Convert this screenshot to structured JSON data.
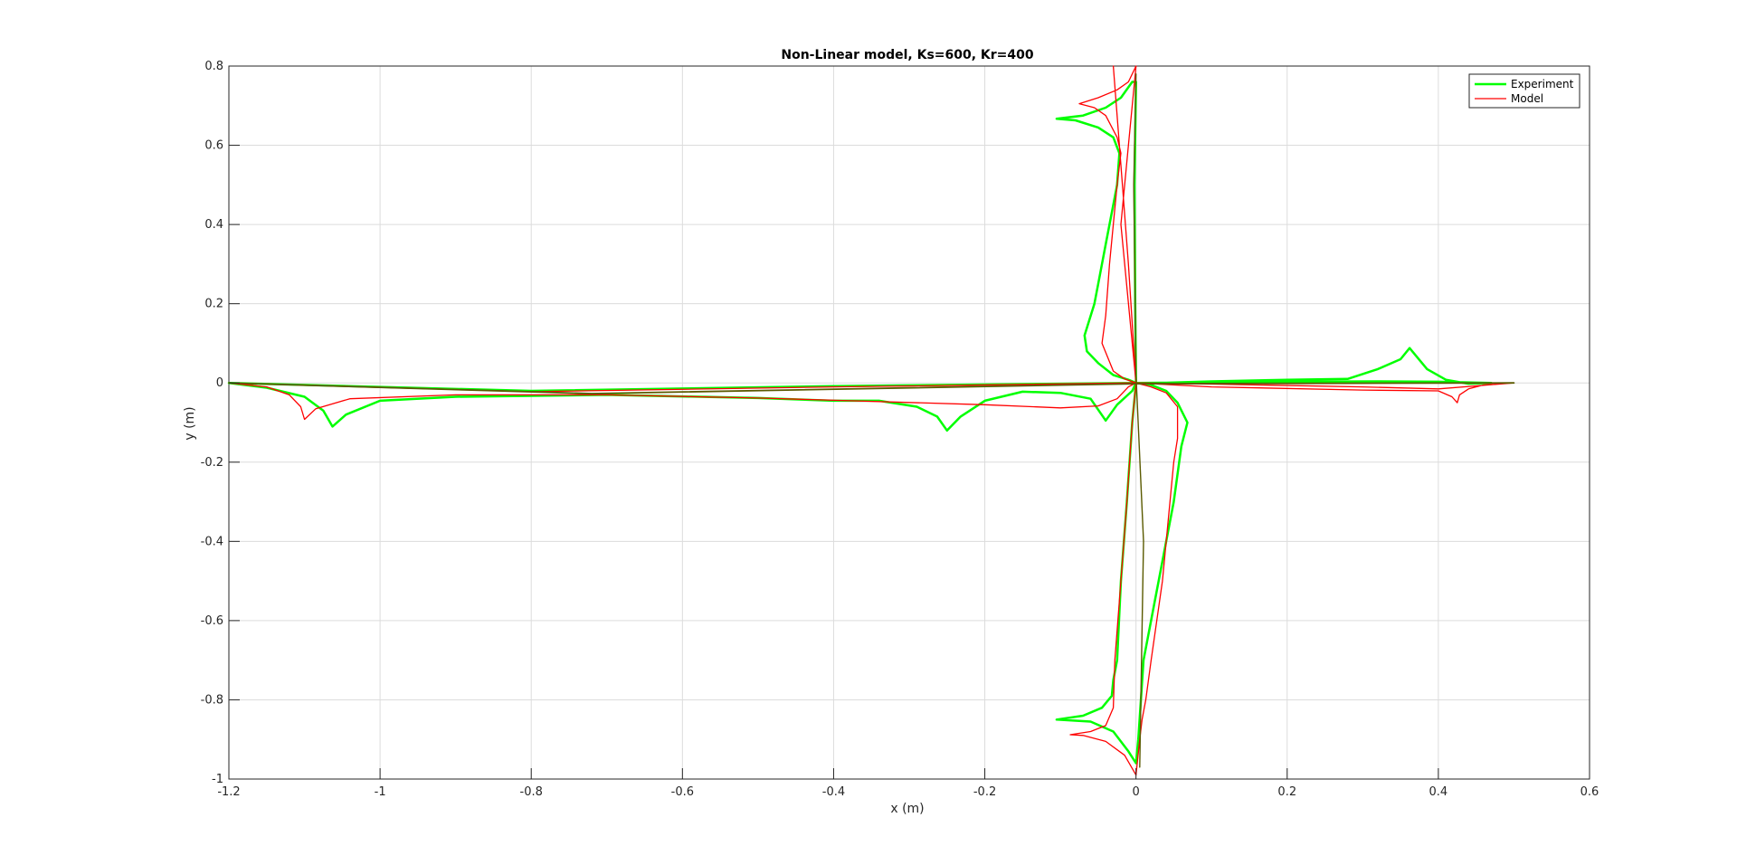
{
  "chart_data": {
    "type": "line",
    "title": "Non-Linear model, Ks=600, Kr=400",
    "xlabel": "x (m)",
    "ylabel": "y (m)",
    "xlim": [
      -1.2,
      0.6
    ],
    "ylim": [
      -1,
      0.8
    ],
    "xticks": [
      -1.2,
      -1,
      -0.8,
      -0.6,
      -0.4,
      -0.2,
      0,
      0.2,
      0.4,
      0.6
    ],
    "yticks": [
      -1,
      -0.8,
      -0.6,
      -0.4,
      -0.2,
      0,
      0.2,
      0.4,
      0.6,
      0.8
    ],
    "xtick_labels": [
      "-1.2",
      "-1",
      "-0.8",
      "-0.6",
      "-0.4",
      "-0.2",
      "0",
      "0.2",
      "0.4",
      "0.6"
    ],
    "ytick_labels": [
      "-1",
      "-0.8",
      "-0.6",
      "-0.4",
      "-0.2",
      "0",
      "0.2",
      "0.4",
      "0.6",
      "0.8"
    ],
    "grid": true,
    "legend_position": "top-right",
    "series": [
      {
        "name": "Experiment",
        "color": "#00ff00",
        "width": 2.5,
        "points": [
          [
            0,
            0
          ],
          [
            0.06,
            0.001
          ],
          [
            0.2,
            0.003
          ],
          [
            0.32,
            0.004
          ],
          [
            0.4,
            0.003
          ],
          [
            0.47,
            0.0
          ],
          [
            0.44,
            -0.002
          ],
          [
            0.41,
            0.008
          ],
          [
            0.385,
            0.035
          ],
          [
            0.362,
            0.088
          ],
          [
            0.35,
            0.06
          ],
          [
            0.32,
            0.035
          ],
          [
            0.28,
            0.01
          ],
          [
            0.2,
            0.008
          ],
          [
            0.1,
            0.004
          ],
          [
            0.03,
            0.0
          ],
          [
            0.0,
            0.0
          ],
          [
            -0.4,
            -0.008
          ],
          [
            -0.8,
            -0.02
          ],
          [
            -1.2,
            0.0
          ],
          [
            -1.15,
            -0.012
          ],
          [
            -1.1,
            -0.035
          ],
          [
            -1.075,
            -0.07
          ],
          [
            -1.063,
            -0.11
          ],
          [
            -1.045,
            -0.08
          ],
          [
            -1.0,
            -0.045
          ],
          [
            -0.9,
            -0.035
          ],
          [
            -0.7,
            -0.03
          ],
          [
            -0.5,
            -0.038
          ],
          [
            -0.4,
            -0.045
          ],
          [
            -0.34,
            -0.045
          ],
          [
            -0.29,
            -0.06
          ],
          [
            -0.263,
            -0.085
          ],
          [
            -0.25,
            -0.12
          ],
          [
            -0.232,
            -0.085
          ],
          [
            -0.2,
            -0.045
          ],
          [
            -0.15,
            -0.022
          ],
          [
            -0.1,
            -0.025
          ],
          [
            -0.06,
            -0.04
          ],
          [
            -0.04,
            -0.095
          ],
          [
            -0.025,
            -0.055
          ],
          [
            -0.005,
            -0.02
          ],
          [
            0.0,
            0.0
          ],
          [
            0.02,
            -0.005
          ],
          [
            0.04,
            -0.02
          ],
          [
            0.055,
            -0.05
          ],
          [
            0.068,
            -0.1
          ],
          [
            0.06,
            -0.16
          ],
          [
            0.05,
            -0.3
          ],
          [
            0.03,
            -0.5
          ],
          [
            0.01,
            -0.7
          ],
          [
            0.003,
            -0.9
          ],
          [
            0.0,
            -0.96
          ],
          [
            -0.01,
            -0.93
          ],
          [
            -0.03,
            -0.88
          ],
          [
            -0.06,
            -0.855
          ],
          [
            -0.105,
            -0.85
          ],
          [
            -0.07,
            -0.84
          ],
          [
            -0.045,
            -0.82
          ],
          [
            -0.032,
            -0.79
          ],
          [
            -0.03,
            -0.75
          ],
          [
            -0.025,
            -0.7
          ],
          [
            -0.02,
            -0.5
          ],
          [
            -0.012,
            -0.3
          ],
          [
            -0.005,
            -0.1
          ],
          [
            0.0,
            0.0
          ],
          [
            -0.01,
            0.008
          ],
          [
            -0.03,
            0.02
          ],
          [
            -0.05,
            0.05
          ],
          [
            -0.065,
            0.08
          ],
          [
            -0.068,
            0.12
          ],
          [
            -0.055,
            0.2
          ],
          [
            -0.05,
            0.25
          ],
          [
            -0.04,
            0.35
          ],
          [
            -0.025,
            0.5
          ],
          [
            -0.022,
            0.58
          ],
          [
            -0.03,
            0.62
          ],
          [
            -0.05,
            0.645
          ],
          [
            -0.08,
            0.663
          ],
          [
            -0.105,
            0.667
          ],
          [
            -0.07,
            0.675
          ],
          [
            -0.04,
            0.695
          ],
          [
            -0.02,
            0.72
          ],
          [
            -0.005,
            0.76
          ],
          [
            0.0,
            0.76
          ],
          [
            -0.002,
            0.5
          ],
          [
            -0.001,
            0.2
          ],
          [
            0.0,
            0.0
          ]
        ]
      },
      {
        "name": "Model",
        "color": "#ff0000",
        "width": 1.3,
        "points": [
          [
            0,
            0
          ],
          [
            0.1,
            -0.003
          ],
          [
            0.3,
            -0.01
          ],
          [
            0.4,
            -0.015
          ],
          [
            0.5,
            0.0
          ],
          [
            0.46,
            -0.005
          ],
          [
            0.44,
            -0.015
          ],
          [
            0.428,
            -0.03
          ],
          [
            0.425,
            -0.05
          ],
          [
            0.418,
            -0.035
          ],
          [
            0.4,
            -0.02
          ],
          [
            0.3,
            -0.018
          ],
          [
            0.1,
            -0.01
          ],
          [
            0.0,
            0.0
          ],
          [
            -0.4,
            -0.01
          ],
          [
            -0.8,
            -0.022
          ],
          [
            -1.2,
            0.0
          ],
          [
            -1.15,
            -0.01
          ],
          [
            -1.12,
            -0.03
          ],
          [
            -1.105,
            -0.06
          ],
          [
            -1.1,
            -0.092
          ],
          [
            -1.085,
            -0.065
          ],
          [
            -1.04,
            -0.04
          ],
          [
            -0.9,
            -0.03
          ],
          [
            -0.7,
            -0.03
          ],
          [
            -0.5,
            -0.038
          ],
          [
            -0.2,
            -0.055
          ],
          [
            -0.1,
            -0.063
          ],
          [
            -0.05,
            -0.058
          ],
          [
            -0.025,
            -0.04
          ],
          [
            -0.01,
            -0.01
          ],
          [
            0.0,
            0.0
          ],
          [
            0.02,
            -0.01
          ],
          [
            0.04,
            -0.025
          ],
          [
            0.055,
            -0.06
          ],
          [
            0.055,
            -0.14
          ],
          [
            0.05,
            -0.2
          ],
          [
            0.035,
            -0.5
          ],
          [
            0.02,
            -0.7
          ],
          [
            0.013,
            -0.8
          ],
          [
            0.008,
            -0.85
          ],
          [
            0.005,
            -0.9
          ],
          [
            0.0,
            -0.99
          ],
          [
            -0.015,
            -0.94
          ],
          [
            -0.04,
            -0.905
          ],
          [
            -0.07,
            -0.89
          ],
          [
            -0.087,
            -0.888
          ],
          [
            -0.06,
            -0.88
          ],
          [
            -0.04,
            -0.865
          ],
          [
            -0.03,
            -0.82
          ],
          [
            -0.028,
            -0.7
          ],
          [
            -0.02,
            -0.5
          ],
          [
            -0.012,
            -0.3
          ],
          [
            -0.005,
            -0.1
          ],
          [
            0.0,
            0.0
          ],
          [
            -0.015,
            0.01
          ],
          [
            -0.03,
            0.03
          ],
          [
            -0.045,
            0.1
          ],
          [
            -0.04,
            0.17
          ],
          [
            -0.035,
            0.3
          ],
          [
            -0.025,
            0.5
          ],
          [
            -0.02,
            0.58
          ],
          [
            -0.025,
            0.62
          ],
          [
            -0.04,
            0.675
          ],
          [
            -0.055,
            0.695
          ],
          [
            -0.075,
            0.705
          ],
          [
            -0.05,
            0.72
          ],
          [
            -0.025,
            0.74
          ],
          [
            -0.01,
            0.76
          ],
          [
            0.0,
            0.8
          ],
          [
            -0.01,
            0.6
          ],
          [
            -0.02,
            0.4
          ],
          [
            0.0,
            0.0
          ],
          [
            -0.01,
            0.3
          ],
          [
            -0.02,
            0.55
          ],
          [
            -0.03,
            0.8
          ]
        ]
      },
      {
        "name": "",
        "color": "#5a5a00",
        "width": 1.8,
        "points": [
          [
            -1.2,
            0.0
          ],
          [
            -0.72,
            -0.027
          ],
          [
            0.0,
            -0.002
          ],
          [
            0.5,
            0.0
          ]
        ]
      },
      {
        "name": "",
        "color": "#5a5a00",
        "width": 1.4,
        "points": [
          [
            0.0,
            0.78
          ],
          [
            -0.003,
            0.5
          ],
          [
            0.0,
            0.02
          ],
          [
            0.01,
            -0.4
          ],
          [
            0.005,
            -0.97
          ]
        ]
      }
    ]
  }
}
